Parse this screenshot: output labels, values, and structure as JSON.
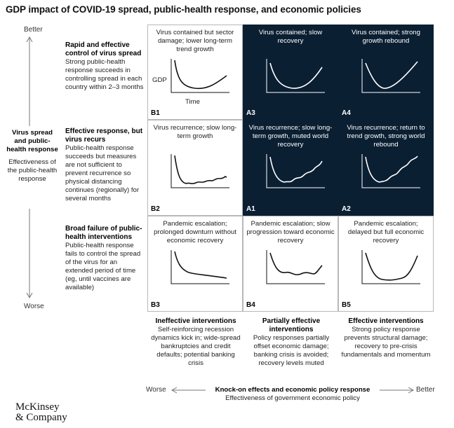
{
  "title": "GDP impact of COVID-19 spread, public-health response, and economic policies",
  "y_axis": {
    "top": "Better",
    "bottom": "Worse",
    "label_bold": "Virus spread and public-health response",
    "label_sub": "Effectiveness of the public-health response"
  },
  "rows": [
    {
      "heading": "Rapid and effective control of virus spread",
      "text": "Strong public-health response succeeds in controlling spread in each country within 2–3 months"
    },
    {
      "heading": "Effective response, but virus recurs",
      "text": "Public-health response succeeds but measures are not sufficient to prevent recurrence so physical distancing continues (regionally) for several months"
    },
    {
      "heading": "Broad failure of public-health interventions",
      "text": "Public-health response fails to control the spread of the virus for an extended period of time (eg, until vaccines are available)"
    }
  ],
  "cells": [
    {
      "id": "B1",
      "text": "Virus contained but sector damage; lower long-term trend growth",
      "dark": false,
      "curve": "b1"
    },
    {
      "id": "A3",
      "text": "Virus contained; slow recovery",
      "dark": true,
      "curve": "a3"
    },
    {
      "id": "A4",
      "text": "Virus contained; strong growth rebound",
      "dark": true,
      "curve": "a4"
    },
    {
      "id": "B2",
      "text": "Virus recurrence; slow long-term growth",
      "dark": false,
      "curve": "b2"
    },
    {
      "id": "A1",
      "text": "Virus recurrence; slow long-term growth, muted world recovery",
      "dark": true,
      "curve": "a1"
    },
    {
      "id": "A2",
      "text": "Virus recurrence; return to trend growth, strong world rebound",
      "dark": true,
      "curve": "a2"
    },
    {
      "id": "B3",
      "text": "Pandemic escalation; prolonged downturn without economic recovery",
      "dark": false,
      "curve": "b3"
    },
    {
      "id": "B4",
      "text": "Pandemic escalation; slow progression toward economic recovery",
      "dark": false,
      "curve": "b4"
    },
    {
      "id": "B5",
      "text": "Pandemic escalation; delayed but full economic recovery",
      "dark": false,
      "curve": "b5"
    }
  ],
  "mini_axis": {
    "y": "GDP",
    "x": "Time"
  },
  "columns": [
    {
      "heading": "Ineffective interventions",
      "text": "Self-reinforcing recession dynamics kick in; wide-spread bankruptcies and credit defaults; potential banking crisis"
    },
    {
      "heading": "Partially effective interventions",
      "text": "Policy responses partially offset economic damage; banking crisis is avoided; recovery levels muted"
    },
    {
      "heading": "Effective interventions",
      "text": "Strong policy response prevents structural damage; recovery to pre-crisis fundamentals and momentum"
    }
  ],
  "x_axis": {
    "left": "Worse",
    "right": "Better",
    "label_bold": "Knock-on effects and economic policy response",
    "label_sub": "Effectiveness of government economic policy"
  },
  "logo": {
    "line1": "McKinsey",
    "line2": "& Company"
  },
  "colors": {
    "dark_cell": "#0b1f33",
    "grid": "#b8b8b8"
  }
}
